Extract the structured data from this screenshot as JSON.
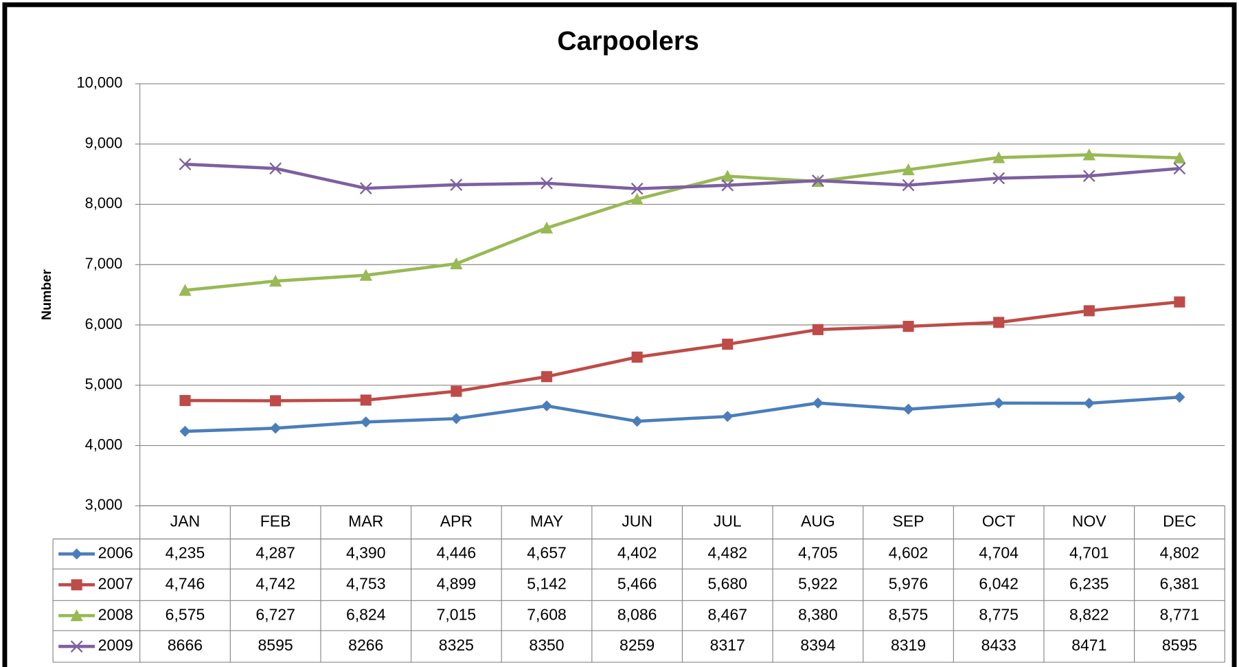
{
  "chart_data": {
    "type": "line",
    "title": "Carpoolers",
    "y_label": "Number",
    "categories": [
      "JAN",
      "FEB",
      "MAR",
      "APR",
      "MAY",
      "JUN",
      "JUL",
      "AUG",
      "SEP",
      "OCT",
      "NOV",
      "DEC"
    ],
    "ylim": [
      3000,
      10000
    ],
    "yticks": [
      {
        "value": 3000,
        "label": "3,000"
      },
      {
        "value": 4000,
        "label": "4,000"
      },
      {
        "value": 5000,
        "label": "5,000"
      },
      {
        "value": 6000,
        "label": "6,000"
      },
      {
        "value": 7000,
        "label": "7,000"
      },
      {
        "value": 8000,
        "label": "8,000"
      },
      {
        "value": 9000,
        "label": "9,000"
      },
      {
        "value": 10000,
        "label": "10,000"
      }
    ],
    "grid": true,
    "series": [
      {
        "name": "2006",
        "color": "#4a7ebb",
        "marker": "diamond",
        "values": [
          4235,
          4287,
          4390,
          4446,
          4657,
          4402,
          4482,
          4705,
          4602,
          4704,
          4701,
          4802
        ],
        "value_labels": [
          "4,235",
          "4,287",
          "4,390",
          "4,446",
          "4,657",
          "4,402",
          "4,482",
          "4,705",
          "4,602",
          "4,704",
          "4,701",
          "4,802"
        ]
      },
      {
        "name": "2007",
        "color": "#be4b48",
        "marker": "square",
        "values": [
          4746,
          4742,
          4753,
          4899,
          5142,
          5466,
          5680,
          5922,
          5976,
          6042,
          6235,
          6381
        ],
        "value_labels": [
          "4,746",
          "4,742",
          "4,753",
          "4,899",
          "5,142",
          "5,466",
          "5,680",
          "5,922",
          "5,976",
          "6,042",
          "6,235",
          "6,381"
        ]
      },
      {
        "name": "2008",
        "color": "#98b954",
        "marker": "triangle",
        "values": [
          6575,
          6727,
          6824,
          7015,
          7608,
          8086,
          8467,
          8380,
          8575,
          8775,
          8822,
          8771
        ],
        "value_labels": [
          "6,575",
          "6,727",
          "6,824",
          "7,015",
          "7,608",
          "8,086",
          "8,467",
          "8,380",
          "8,575",
          "8,775",
          "8,822",
          "8,771"
        ]
      },
      {
        "name": "2009",
        "color": "#7d60a0",
        "marker": "x",
        "values": [
          8666,
          8595,
          8266,
          8325,
          8350,
          8259,
          8317,
          8394,
          8319,
          8433,
          8471,
          8595
        ]
      }
    ]
  }
}
